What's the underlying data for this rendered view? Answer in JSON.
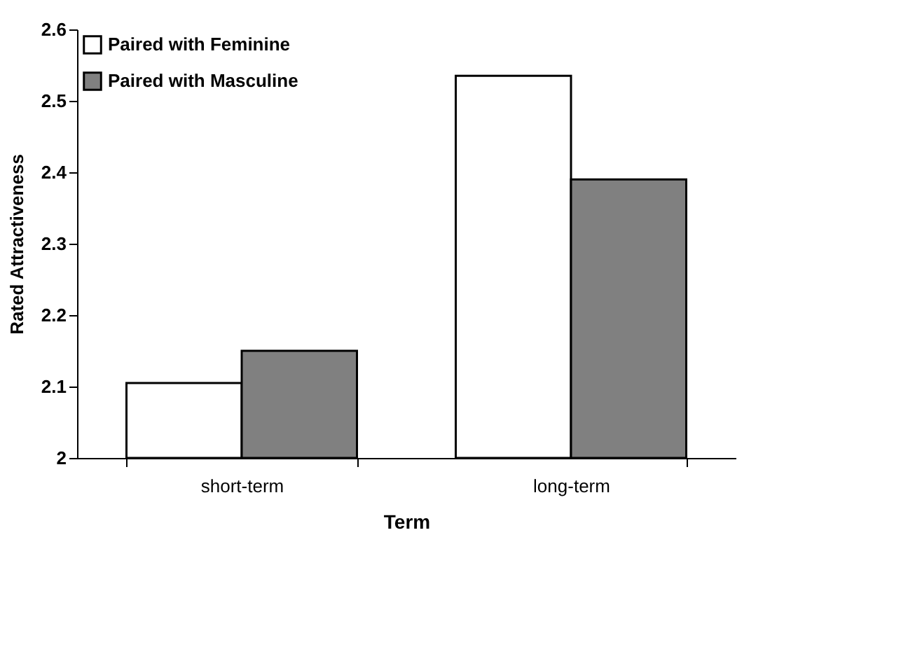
{
  "chart_data": {
    "type": "bar",
    "xlabel": "Term",
    "ylabel": "Rated Attractiveness",
    "categories": [
      "short-term",
      "long-term"
    ],
    "series": [
      {
        "name": "Paired with Feminine",
        "color": "#ffffff",
        "values": [
          2.105,
          2.535
        ]
      },
      {
        "name": "Paired with Masculine",
        "color": "#808080",
        "values": [
          2.15,
          2.39
        ]
      }
    ],
    "ylim": [
      2,
      2.6
    ],
    "yticks": [
      {
        "value": 2,
        "label": "2"
      },
      2.1,
      2.2,
      2.3,
      2.4,
      2.5,
      2.6
    ],
    "grid": false,
    "legend": "top left"
  }
}
